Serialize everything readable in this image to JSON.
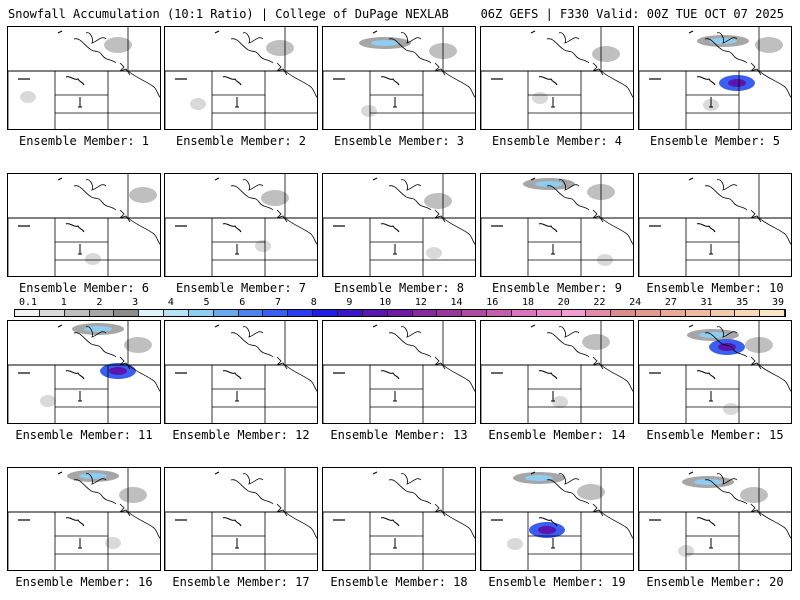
{
  "header": {
    "left": "Snowfall Accumulation (10:1 Ratio) | College of DuPage NEXLAB",
    "right": "06Z GEFS | F330 Valid: 00Z TUE OCT 07 2025"
  },
  "colorbar": {
    "ticks": [
      "0.1",
      "1",
      "2",
      "3",
      "4",
      "5",
      "6",
      "7",
      "8",
      "9",
      "10",
      "12",
      "14",
      "16",
      "18",
      "20",
      "22",
      "24",
      "27",
      "31",
      "35",
      "39"
    ],
    "colors": [
      "#f2f2f2",
      "#d9d9d9",
      "#bfbfbf",
      "#a6a6a6",
      "#8c8c8c",
      "#dff3fb",
      "#b7e4f5",
      "#8fcdf0",
      "#6aa8ee",
      "#4f83ec",
      "#3a5ef0",
      "#2a3cf0",
      "#1e1ee6",
      "#3a18c8",
      "#5a14b0",
      "#6e1aa6",
      "#84299e",
      "#98389a",
      "#ad4aa2",
      "#c25eae",
      "#d873bc",
      "#e889c9",
      "#f09fd4",
      "#e28aa8",
      "#d88c8c",
      "#e09a8e",
      "#e7aa96",
      "#eebaa0",
      "#f3c9ab",
      "#f7d8b7",
      "#fae6c5"
    ]
  },
  "panels": [
    {
      "label": "Ensemble Member: 1",
      "snow": "light"
    },
    {
      "label": "Ensemble Member: 2",
      "snow": "light"
    },
    {
      "label": "Ensemble Member: 3",
      "snow": "moderate"
    },
    {
      "label": "Ensemble Member: 4",
      "snow": "light"
    },
    {
      "label": "Ensemble Member: 5",
      "snow": "heavy"
    },
    {
      "label": "Ensemble Member: 6",
      "snow": "light"
    },
    {
      "label": "Ensemble Member: 7",
      "snow": "light"
    },
    {
      "label": "Ensemble Member: 8",
      "snow": "light"
    },
    {
      "label": "Ensemble Member: 9",
      "snow": "moderate"
    },
    {
      "label": "Ensemble Member: 10",
      "snow": "none"
    },
    {
      "label": "Ensemble Member: 11",
      "snow": "heavy"
    },
    {
      "label": "Ensemble Member: 12",
      "snow": "none"
    },
    {
      "label": "Ensemble Member: 13",
      "snow": "none"
    },
    {
      "label": "Ensemble Member: 14",
      "snow": "light"
    },
    {
      "label": "Ensemble Member: 15",
      "snow": "heavy"
    },
    {
      "label": "Ensemble Member: 16",
      "snow": "moderate"
    },
    {
      "label": "Ensemble Member: 17",
      "snow": "none"
    },
    {
      "label": "Ensemble Member: 18",
      "snow": "none"
    },
    {
      "label": "Ensemble Member: 19",
      "snow": "heavy"
    },
    {
      "label": "Ensemble Member: 20",
      "snow": "moderate"
    }
  ]
}
